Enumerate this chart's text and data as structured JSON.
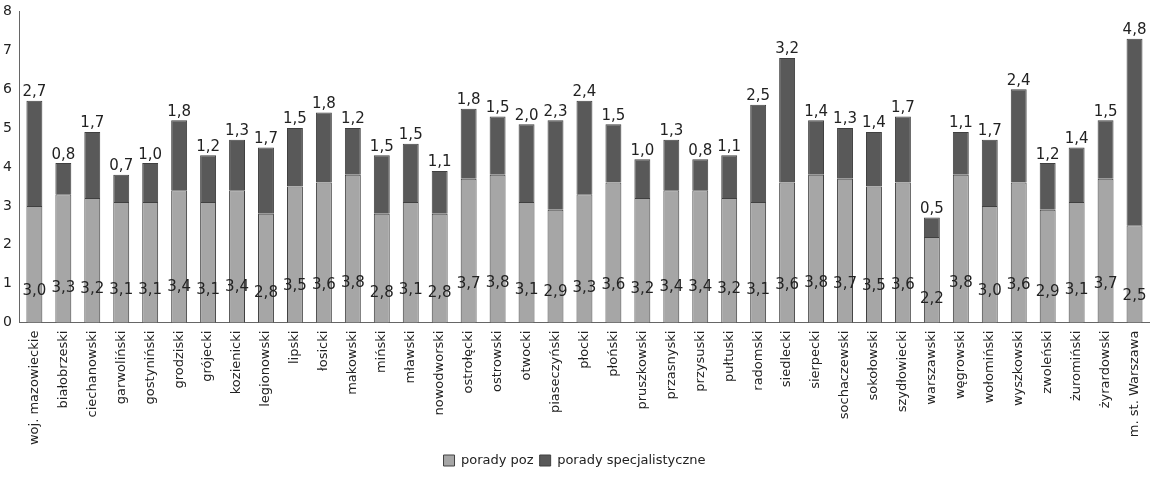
{
  "chart_data": {
    "type": "bar",
    "stacked": true,
    "categories": [
      "woj. mazowieckie",
      "białobrzeski",
      "ciechanowski",
      "garwoliński",
      "gostyniński",
      "grodziski",
      "grójecki",
      "kozienicki",
      "legionowski",
      "lipski",
      "łosicki",
      "makowski",
      "miński",
      "mławski",
      "nowodworski",
      "ostrołęcki",
      "ostrowski",
      "otwocki",
      "piaseczyński",
      "płocki",
      "płoński",
      "pruszkowski",
      "przasnyski",
      "przysuski",
      "pułtuski",
      "radomski",
      "siedlecki",
      "sierpecki",
      "sochaczewski",
      "sokołowski",
      "szydłowiecki",
      "warszawski",
      "węgrowski",
      "wołomiński",
      "wyszkowski",
      "zwoleński",
      "żuromiński",
      "żyrardowski",
      "m. st. Warszawa"
    ],
    "series": [
      {
        "name": "porady poz",
        "color": "#a6a6a6",
        "values": [
          3.0,
          3.3,
          3.2,
          3.1,
          3.1,
          3.4,
          3.1,
          3.4,
          2.8,
          3.5,
          3.6,
          3.8,
          2.8,
          3.1,
          2.8,
          3.7,
          3.8,
          3.1,
          2.9,
          3.3,
          3.6,
          3.2,
          3.4,
          3.4,
          3.2,
          3.1,
          3.6,
          3.8,
          3.7,
          3.5,
          3.6,
          2.2,
          3.8,
          3.0,
          3.6,
          2.9,
          3.1,
          3.7,
          2.5
        ],
        "value_labels": [
          "3,0",
          "3,3",
          "3,2",
          "3,1",
          "3,1",
          "3,4",
          "3,1",
          "3,4",
          "2,8",
          "3,5",
          "3,6",
          "3,8",
          "2,8",
          "3,1",
          "2,8",
          "3,7",
          "3,8",
          "3,1",
          "2,9",
          "3,3",
          "3,6",
          "3,2",
          "3,4",
          "3,4",
          "3,2",
          "3,1",
          "3,6",
          "3,8",
          "3,7",
          "3,5",
          "3,6",
          "2,2",
          "3,8",
          "3,0",
          "3,6",
          "2,9",
          "3,1",
          "3,7",
          "2,5"
        ]
      },
      {
        "name": "porady specjalistyczne",
        "color": "#595959",
        "values": [
          2.7,
          0.8,
          1.7,
          0.7,
          1.0,
          1.8,
          1.2,
          1.3,
          1.7,
          1.5,
          1.8,
          1.2,
          1.5,
          1.5,
          1.1,
          1.8,
          1.5,
          2.0,
          2.3,
          2.4,
          1.5,
          1.0,
          1.3,
          0.8,
          1.1,
          2.5,
          3.2,
          1.4,
          1.3,
          1.4,
          1.7,
          0.5,
          1.1,
          1.7,
          2.4,
          1.2,
          1.4,
          1.5,
          4.8
        ],
        "value_labels": [
          "2,7",
          "0,8",
          "1,7",
          "0,7",
          "1,0",
          "1,8",
          "1,2",
          "1,3",
          "1,7",
          "1,5",
          "1,8",
          "1,2",
          "1,5",
          "1,5",
          "1,1",
          "1,8",
          "1,5",
          "2,0",
          "2,3",
          "2,4",
          "1,5",
          "1,0",
          "1,3",
          "0,8",
          "1,1",
          "2,5",
          "3,2",
          "1,4",
          "1,3",
          "1,4",
          "1,7",
          "0,5",
          "1,1",
          "1,7",
          "2,4",
          "1,2",
          "1,4",
          "1,5",
          "4,8"
        ]
      }
    ],
    "ylim": [
      0,
      8
    ],
    "yticks": [
      0,
      1,
      2,
      3,
      4,
      5,
      6,
      7,
      8
    ],
    "grid": false,
    "legend": "bottom"
  }
}
